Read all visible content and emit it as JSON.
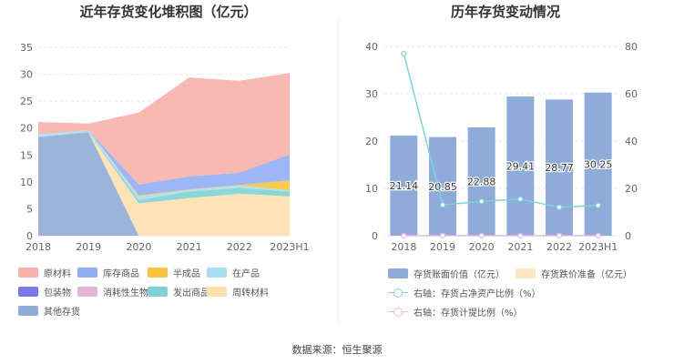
{
  "left_title": "近年存货变化堆积图（亿元）",
  "right_title": "历年存货变动情况",
  "source": "数据来源：恒生聚源",
  "chart_data": [
    {
      "type": "area",
      "stacked": true,
      "title": "近年存货变化堆积图（亿元）",
      "categories": [
        "2018",
        "2019",
        "2020",
        "2021",
        "2022",
        "2023H1"
      ],
      "ylim": [
        0,
        35
      ],
      "yticks": [
        "0",
        "5",
        "10",
        "15",
        "20",
        "25",
        "30",
        "35"
      ],
      "series": [
        {
          "name": "其他存货",
          "color": "#92acd6",
          "values": [
            18.3,
            19.2,
            0,
            0,
            0,
            0
          ]
        },
        {
          "name": "周转材料",
          "color": "#fde0ae",
          "values": [
            0,
            0,
            6.0,
            7.0,
            7.8,
            7.3
          ]
        },
        {
          "name": "发出商品",
          "color": "#7ed1d4",
          "values": [
            0.1,
            0.1,
            0.6,
            1.2,
            1.1,
            0.9
          ]
        },
        {
          "name": "消耗性生物资产",
          "color": "#e6b4d8",
          "values": [
            0,
            0,
            0,
            0,
            0,
            0
          ]
        },
        {
          "name": "包装物",
          "color": "#7b78e8",
          "values": [
            0,
            0,
            0,
            0,
            0,
            0
          ]
        },
        {
          "name": "在产品",
          "color": "#a8ddf2",
          "values": [
            0.4,
            0.3,
            0.7,
            0.3,
            0.4,
            0.2
          ]
        },
        {
          "name": "半成品",
          "color": "#f9c540",
          "values": [
            0,
            0,
            0.2,
            0.1,
            0.1,
            1.9
          ]
        },
        {
          "name": "库存商品",
          "color": "#92aef7",
          "values": [
            0,
            0,
            2.0,
            2.4,
            2.3,
            4.8
          ]
        },
        {
          "name": "原材料",
          "color": "#f8b1ab",
          "values": [
            2.34,
            1.25,
            13.38,
            18.41,
            17.07,
            15.15
          ]
        }
      ],
      "legend": [
        {
          "name": "原材料",
          "color": "#f8b1ab"
        },
        {
          "name": "库存商品",
          "color": "#92aef7"
        },
        {
          "name": "半成品",
          "color": "#f9c540"
        },
        {
          "name": "在产品",
          "color": "#a8ddf2"
        },
        {
          "name": "包装物",
          "color": "#7b78e8"
        },
        {
          "name": "消耗性生物资产",
          "color": "#e6b4d8"
        },
        {
          "name": "发出商品",
          "color": "#7ed1d4"
        },
        {
          "name": "周转材料",
          "color": "#fde0ae"
        },
        {
          "name": "其他存货",
          "color": "#92acd6"
        }
      ]
    },
    {
      "type": "bar",
      "title": "历年存货变动情况",
      "categories": [
        "2018",
        "2019",
        "2020",
        "2021",
        "2022",
        "2023H1"
      ],
      "ylim": [
        0,
        40
      ],
      "yticks": [
        "0",
        "10",
        "20",
        "30",
        "40"
      ],
      "y2lim": [
        0,
        80
      ],
      "y2ticks": [
        "0",
        "20",
        "40",
        "60",
        "80"
      ],
      "series": [
        {
          "name": "存货账面价值（亿元）",
          "color": "#8eabd9",
          "axis": "left",
          "kind": "bar",
          "values": [
            21.14,
            20.85,
            22.88,
            29.41,
            28.77,
            30.25
          ],
          "labels": [
            "21.14",
            "20.85",
            "22.88",
            "29.41",
            "28.77",
            "30.25"
          ]
        },
        {
          "name": "存货跌价准备（亿元）",
          "color": "#fde6c3",
          "axis": "left",
          "kind": "bar",
          "values": [
            0,
            0,
            0,
            0,
            0,
            0
          ]
        },
        {
          "name": "右轴：存货占净资产比例（%）",
          "color": "#7fd3d6",
          "axis": "right",
          "kind": "line",
          "values": [
            77,
            13,
            14.5,
            15.5,
            12,
            12.8
          ]
        },
        {
          "name": "右轴：存货计提比例（%）",
          "color": "#e9b8dc",
          "axis": "right",
          "kind": "line",
          "values": [
            0,
            0,
            0,
            0,
            0,
            0
          ]
        }
      ]
    }
  ]
}
